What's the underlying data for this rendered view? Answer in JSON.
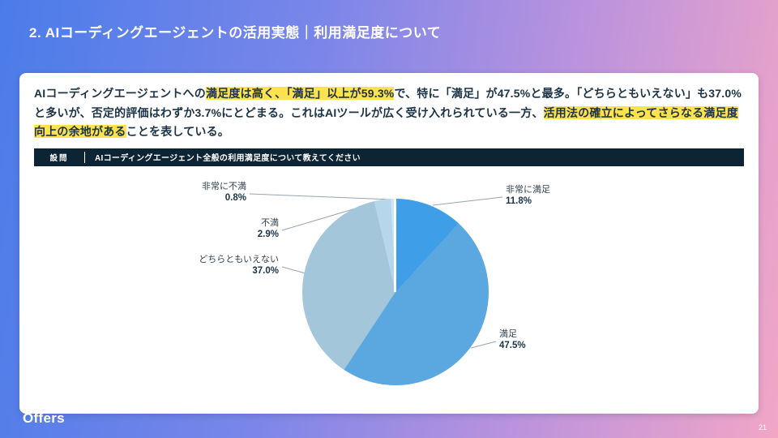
{
  "slide": {
    "title": "2. AIコーディングエージェントの活用実態｜利用満足度について",
    "logo": "Offers",
    "page_number": "21"
  },
  "summary": {
    "segments": [
      {
        "text": "AIコーディングエージェントへの",
        "highlight": false
      },
      {
        "text": "満足度は高く、「満足」以上が59.3%",
        "highlight": true
      },
      {
        "text": "で、特に「満足」が47.5%と最多。「どちらともいえない」も37.0%と多いが、否定的評価はわずか3.7%にとどまる。これはAIツールが広く受け入れられている一方、",
        "highlight": false
      },
      {
        "text": "活用法の確立によってさらなる満足度向上の余地がある",
        "highlight": true
      },
      {
        "text": "ことを表している。",
        "highlight": false
      }
    ]
  },
  "question": {
    "label": "設問",
    "text": "AIコーディングエージェント全般の利用満足度について教えてください"
  },
  "chart_data": {
    "type": "pie",
    "title": "AIコーディングエージェント全般の利用満足度",
    "labels": [
      "非常に満足",
      "満足",
      "どちらともいえない",
      "不満",
      "非常に不満"
    ],
    "values": [
      11.8,
      47.5,
      37.0,
      2.9,
      0.8
    ],
    "display_values": [
      "11.8%",
      "47.5%",
      "37.0%",
      "2.9%",
      "0.8%"
    ],
    "colors": [
      "#3e9ee8",
      "#5ba8e0",
      "#a3c6db",
      "#b6d7eb",
      "#cfe5f4"
    ],
    "start_angle_deg": 0,
    "direction": "clockwise",
    "legend": "none"
  },
  "colors": {
    "highlight": "#ffe24d",
    "question_bar_bg": "#0c2433",
    "text_dark": "#1b3347",
    "leader_line": "#97a4ae"
  }
}
